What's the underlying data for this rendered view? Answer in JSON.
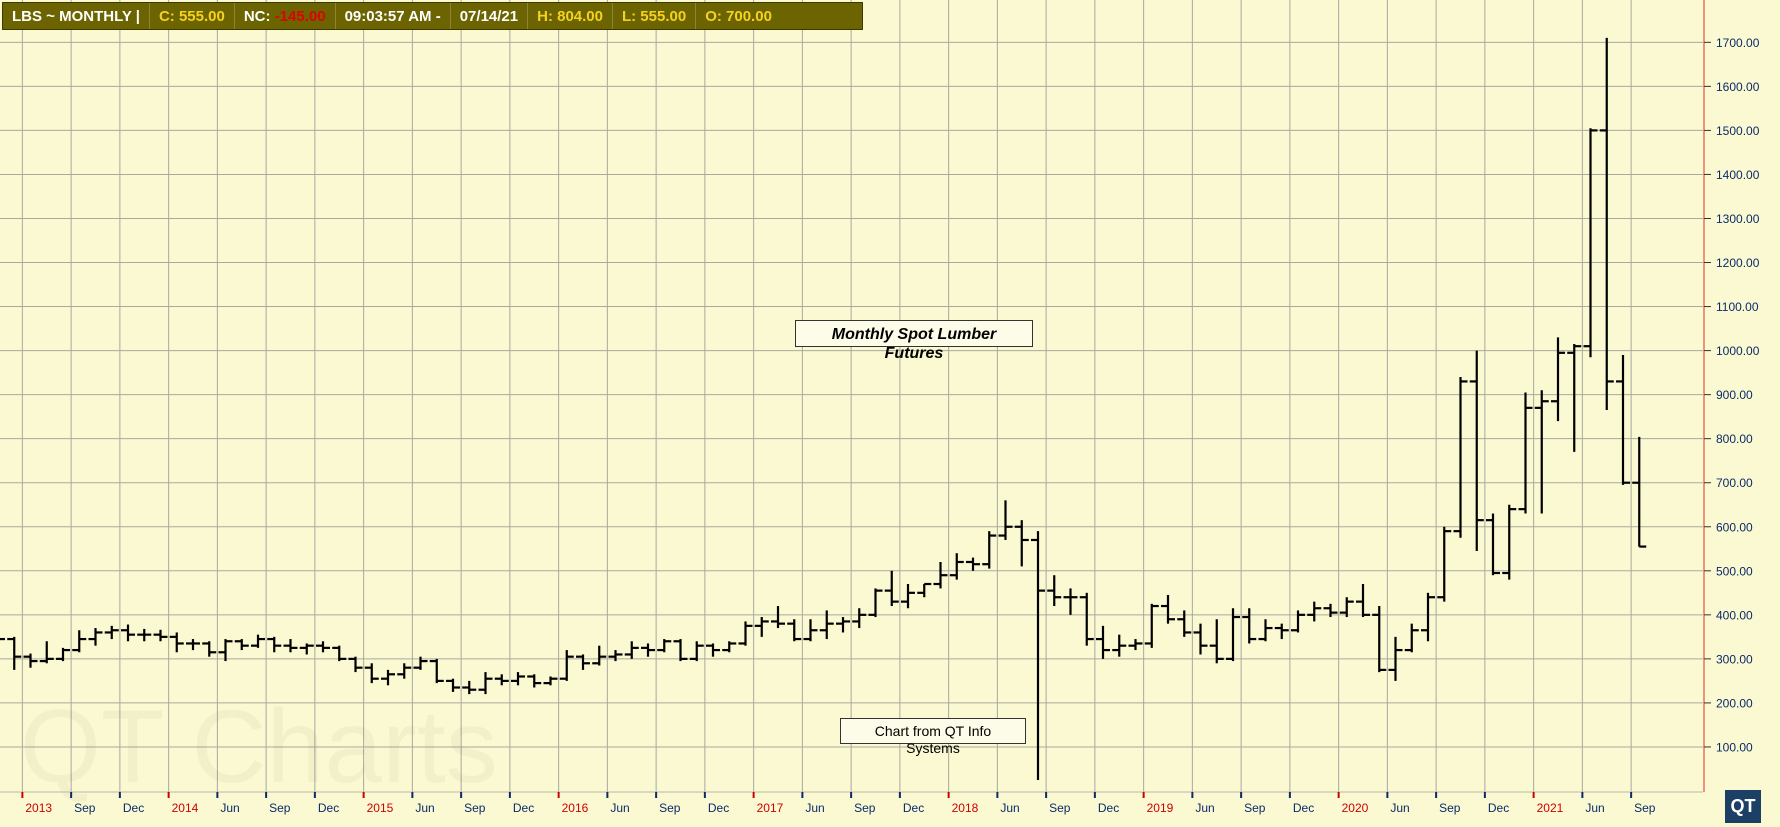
{
  "header": {
    "symbol": "LBS  ~  MONTHLY     |",
    "close": "C: 555.00",
    "nc_label": "NC:",
    "nc_value": "-145.00",
    "time": "09:03:57 AM    -",
    "date": "07/14/21",
    "high": "H: 804.00",
    "low": "L: 555.00",
    "open": "O: 700.00"
  },
  "annotations": {
    "title": "Monthly Spot Lumber Futures",
    "credit": "Chart from QT Info Systems",
    "watermark": "QT Charts",
    "logo": "QT"
  },
  "colors": {
    "background": "#fbf9d1",
    "grid": "#a9a9a0",
    "bars": "#000000",
    "axis_line": "#f07060",
    "year_ticks": "#d00000",
    "month_ticks": "#0a2a6a",
    "header_bg": "#6b6400",
    "header_accent": "#f5d21e"
  },
  "chart_data": {
    "type": "ohlc",
    "ylim": [
      0,
      1780
    ],
    "yticks": [
      100,
      200,
      300,
      400,
      500,
      600,
      700,
      800,
      900,
      1000,
      1100,
      1200,
      1300,
      1400,
      1500,
      1600,
      1700
    ],
    "xticks": [
      {
        "label": "2013",
        "index": 1,
        "year": true
      },
      {
        "label": "Sep",
        "index": 4,
        "year": false
      },
      {
        "label": "Dec",
        "index": 7,
        "year": false
      },
      {
        "label": "2014",
        "index": 10,
        "year": true
      },
      {
        "label": "Jun",
        "index": 13,
        "year": false
      },
      {
        "label": "Sep",
        "index": 16,
        "year": false
      },
      {
        "label": "Dec",
        "index": 19,
        "year": false
      },
      {
        "label": "2015",
        "index": 22,
        "year": true
      },
      {
        "label": "Jun",
        "index": 25,
        "year": false
      },
      {
        "label": "Sep",
        "index": 28,
        "year": false
      },
      {
        "label": "Dec",
        "index": 31,
        "year": false
      },
      {
        "label": "2016",
        "index": 34,
        "year": true
      },
      {
        "label": "Jun",
        "index": 37,
        "year": false
      },
      {
        "label": "Sep",
        "index": 40,
        "year": false
      },
      {
        "label": "Dec",
        "index": 43,
        "year": false
      },
      {
        "label": "2017",
        "index": 46,
        "year": true
      },
      {
        "label": "Jun",
        "index": 49,
        "year": false
      },
      {
        "label": "Sep",
        "index": 52,
        "year": false
      },
      {
        "label": "Dec",
        "index": 55,
        "year": false
      },
      {
        "label": "2018",
        "index": 58,
        "year": true
      },
      {
        "label": "Jun",
        "index": 61,
        "year": false
      },
      {
        "label": "Sep",
        "index": 64,
        "year": false
      },
      {
        "label": "Dec",
        "index": 67,
        "year": false
      },
      {
        "label": "2019",
        "index": 70,
        "year": true
      },
      {
        "label": "Jun",
        "index": 73,
        "year": false
      },
      {
        "label": "Sep",
        "index": 76,
        "year": false
      },
      {
        "label": "Dec",
        "index": 79,
        "year": false
      },
      {
        "label": "2020",
        "index": 82,
        "year": true
      },
      {
        "label": "Jun",
        "index": 85,
        "year": false
      },
      {
        "label": "Sep",
        "index": 88,
        "year": false
      },
      {
        "label": "Dec",
        "index": 91,
        "year": false
      },
      {
        "label": "2021",
        "index": 94,
        "year": true
      },
      {
        "label": "Jun",
        "index": 97,
        "year": false
      },
      {
        "label": "Sep",
        "index": 100,
        "year": false
      }
    ],
    "bars": [
      {
        "o": 390,
        "h": 398,
        "l": 340,
        "c": 345
      },
      {
        "o": 345,
        "h": 350,
        "l": 275,
        "c": 305
      },
      {
        "o": 305,
        "h": 312,
        "l": 280,
        "c": 295
      },
      {
        "o": 295,
        "h": 340,
        "l": 290,
        "c": 300
      },
      {
        "o": 300,
        "h": 325,
        "l": 295,
        "c": 320
      },
      {
        "o": 320,
        "h": 365,
        "l": 315,
        "c": 345
      },
      {
        "o": 345,
        "h": 370,
        "l": 330,
        "c": 360
      },
      {
        "o": 360,
        "h": 375,
        "l": 345,
        "c": 365
      },
      {
        "o": 365,
        "h": 378,
        "l": 340,
        "c": 355
      },
      {
        "o": 355,
        "h": 368,
        "l": 340,
        "c": 355
      },
      {
        "o": 355,
        "h": 366,
        "l": 340,
        "c": 350
      },
      {
        "o": 350,
        "h": 360,
        "l": 315,
        "c": 335
      },
      {
        "o": 335,
        "h": 345,
        "l": 320,
        "c": 335
      },
      {
        "o": 335,
        "h": 340,
        "l": 305,
        "c": 315
      },
      {
        "o": 315,
        "h": 345,
        "l": 295,
        "c": 340
      },
      {
        "o": 340,
        "h": 345,
        "l": 320,
        "c": 330
      },
      {
        "o": 330,
        "h": 355,
        "l": 325,
        "c": 345
      },
      {
        "o": 345,
        "h": 350,
        "l": 315,
        "c": 330
      },
      {
        "o": 330,
        "h": 345,
        "l": 315,
        "c": 325
      },
      {
        "o": 325,
        "h": 335,
        "l": 310,
        "c": 330
      },
      {
        "o": 330,
        "h": 340,
        "l": 315,
        "c": 325
      },
      {
        "o": 325,
        "h": 330,
        "l": 295,
        "c": 300
      },
      {
        "o": 300,
        "h": 305,
        "l": 270,
        "c": 280
      },
      {
        "o": 280,
        "h": 290,
        "l": 245,
        "c": 255
      },
      {
        "o": 255,
        "h": 275,
        "l": 240,
        "c": 265
      },
      {
        "o": 265,
        "h": 290,
        "l": 255,
        "c": 280
      },
      {
        "o": 280,
        "h": 305,
        "l": 275,
        "c": 295
      },
      {
        "o": 295,
        "h": 300,
        "l": 245,
        "c": 250
      },
      {
        "o": 250,
        "h": 255,
        "l": 225,
        "c": 235
      },
      {
        "o": 235,
        "h": 250,
        "l": 220,
        "c": 230
      },
      {
        "o": 230,
        "h": 270,
        "l": 220,
        "c": 255
      },
      {
        "o": 255,
        "h": 265,
        "l": 240,
        "c": 250
      },
      {
        "o": 250,
        "h": 270,
        "l": 240,
        "c": 260
      },
      {
        "o": 260,
        "h": 265,
        "l": 235,
        "c": 245
      },
      {
        "o": 245,
        "h": 260,
        "l": 240,
        "c": 255
      },
      {
        "o": 255,
        "h": 320,
        "l": 250,
        "c": 305
      },
      {
        "o": 305,
        "h": 310,
        "l": 275,
        "c": 290
      },
      {
        "o": 290,
        "h": 330,
        "l": 285,
        "c": 305
      },
      {
        "o": 305,
        "h": 320,
        "l": 295,
        "c": 310
      },
      {
        "o": 310,
        "h": 340,
        "l": 300,
        "c": 325
      },
      {
        "o": 325,
        "h": 335,
        "l": 305,
        "c": 320
      },
      {
        "o": 320,
        "h": 345,
        "l": 315,
        "c": 340
      },
      {
        "o": 340,
        "h": 345,
        "l": 295,
        "c": 300
      },
      {
        "o": 300,
        "h": 340,
        "l": 295,
        "c": 330
      },
      {
        "o": 330,
        "h": 335,
        "l": 305,
        "c": 320
      },
      {
        "o": 320,
        "h": 340,
        "l": 315,
        "c": 335
      },
      {
        "o": 335,
        "h": 385,
        "l": 330,
        "c": 375
      },
      {
        "o": 375,
        "h": 395,
        "l": 350,
        "c": 385
      },
      {
        "o": 385,
        "h": 420,
        "l": 370,
        "c": 380
      },
      {
        "o": 380,
        "h": 390,
        "l": 340,
        "c": 345
      },
      {
        "o": 345,
        "h": 390,
        "l": 340,
        "c": 365
      },
      {
        "o": 365,
        "h": 410,
        "l": 345,
        "c": 380
      },
      {
        "o": 380,
        "h": 395,
        "l": 360,
        "c": 385
      },
      {
        "o": 385,
        "h": 415,
        "l": 370,
        "c": 400
      },
      {
        "o": 400,
        "h": 460,
        "l": 395,
        "c": 455
      },
      {
        "o": 455,
        "h": 500,
        "l": 420,
        "c": 430
      },
      {
        "o": 430,
        "h": 470,
        "l": 415,
        "c": 450
      },
      {
        "o": 450,
        "h": 470,
        "l": 440,
        "c": 470
      },
      {
        "o": 470,
        "h": 520,
        "l": 460,
        "c": 490
      },
      {
        "o": 490,
        "h": 540,
        "l": 480,
        "c": 520
      },
      {
        "o": 520,
        "h": 530,
        "l": 500,
        "c": 515
      },
      {
        "o": 515,
        "h": 590,
        "l": 505,
        "c": 580
      },
      {
        "o": 580,
        "h": 660,
        "l": 570,
        "c": 600
      },
      {
        "o": 600,
        "h": 615,
        "l": 510,
        "c": 570
      },
      {
        "o": 570,
        "h": 590,
        "l": 25,
        "c": 455
      },
      {
        "o": 455,
        "h": 490,
        "l": 420,
        "c": 440
      },
      {
        "o": 440,
        "h": 460,
        "l": 400,
        "c": 440
      },
      {
        "o": 440,
        "h": 450,
        "l": 330,
        "c": 345
      },
      {
        "o": 345,
        "h": 375,
        "l": 300,
        "c": 320
      },
      {
        "o": 320,
        "h": 355,
        "l": 305,
        "c": 330
      },
      {
        "o": 330,
        "h": 345,
        "l": 320,
        "c": 335
      },
      {
        "o": 335,
        "h": 425,
        "l": 325,
        "c": 420
      },
      {
        "o": 420,
        "h": 445,
        "l": 380,
        "c": 390
      },
      {
        "o": 390,
        "h": 410,
        "l": 350,
        "c": 360
      },
      {
        "o": 360,
        "h": 380,
        "l": 310,
        "c": 330
      },
      {
        "o": 330,
        "h": 390,
        "l": 290,
        "c": 300
      },
      {
        "o": 300,
        "h": 415,
        "l": 295,
        "c": 395
      },
      {
        "o": 395,
        "h": 415,
        "l": 335,
        "c": 345
      },
      {
        "o": 345,
        "h": 390,
        "l": 340,
        "c": 370
      },
      {
        "o": 370,
        "h": 380,
        "l": 345,
        "c": 365
      },
      {
        "o": 365,
        "h": 410,
        "l": 360,
        "c": 400
      },
      {
        "o": 400,
        "h": 430,
        "l": 385,
        "c": 415
      },
      {
        "o": 415,
        "h": 425,
        "l": 395,
        "c": 405
      },
      {
        "o": 405,
        "h": 440,
        "l": 395,
        "c": 430
      },
      {
        "o": 430,
        "h": 470,
        "l": 395,
        "c": 400
      },
      {
        "o": 400,
        "h": 420,
        "l": 270,
        "c": 275
      },
      {
        "o": 275,
        "h": 350,
        "l": 250,
        "c": 320
      },
      {
        "o": 320,
        "h": 380,
        "l": 315,
        "c": 365
      },
      {
        "o": 365,
        "h": 450,
        "l": 340,
        "c": 440
      },
      {
        "o": 440,
        "h": 600,
        "l": 430,
        "c": 590
      },
      {
        "o": 590,
        "h": 940,
        "l": 575,
        "c": 930
      },
      {
        "o": 930,
        "h": 1000,
        "l": 545,
        "c": 615
      },
      {
        "o": 615,
        "h": 630,
        "l": 490,
        "c": 495
      },
      {
        "o": 495,
        "h": 650,
        "l": 480,
        "c": 640
      },
      {
        "o": 640,
        "h": 905,
        "l": 630,
        "c": 870
      },
      {
        "o": 870,
        "h": 910,
        "l": 630,
        "c": 885
      },
      {
        "o": 885,
        "h": 1030,
        "l": 840,
        "c": 995
      },
      {
        "o": 995,
        "h": 1015,
        "l": 770,
        "c": 1010
      },
      {
        "o": 1010,
        "h": 1505,
        "l": 985,
        "c": 1500
      },
      {
        "o": 1500,
        "h": 1710,
        "l": 865,
        "c": 930
      },
      {
        "o": 930,
        "h": 990,
        "l": 695,
        "c": 700
      },
      {
        "o": 700,
        "h": 804,
        "l": 555,
        "c": 555
      }
    ]
  }
}
